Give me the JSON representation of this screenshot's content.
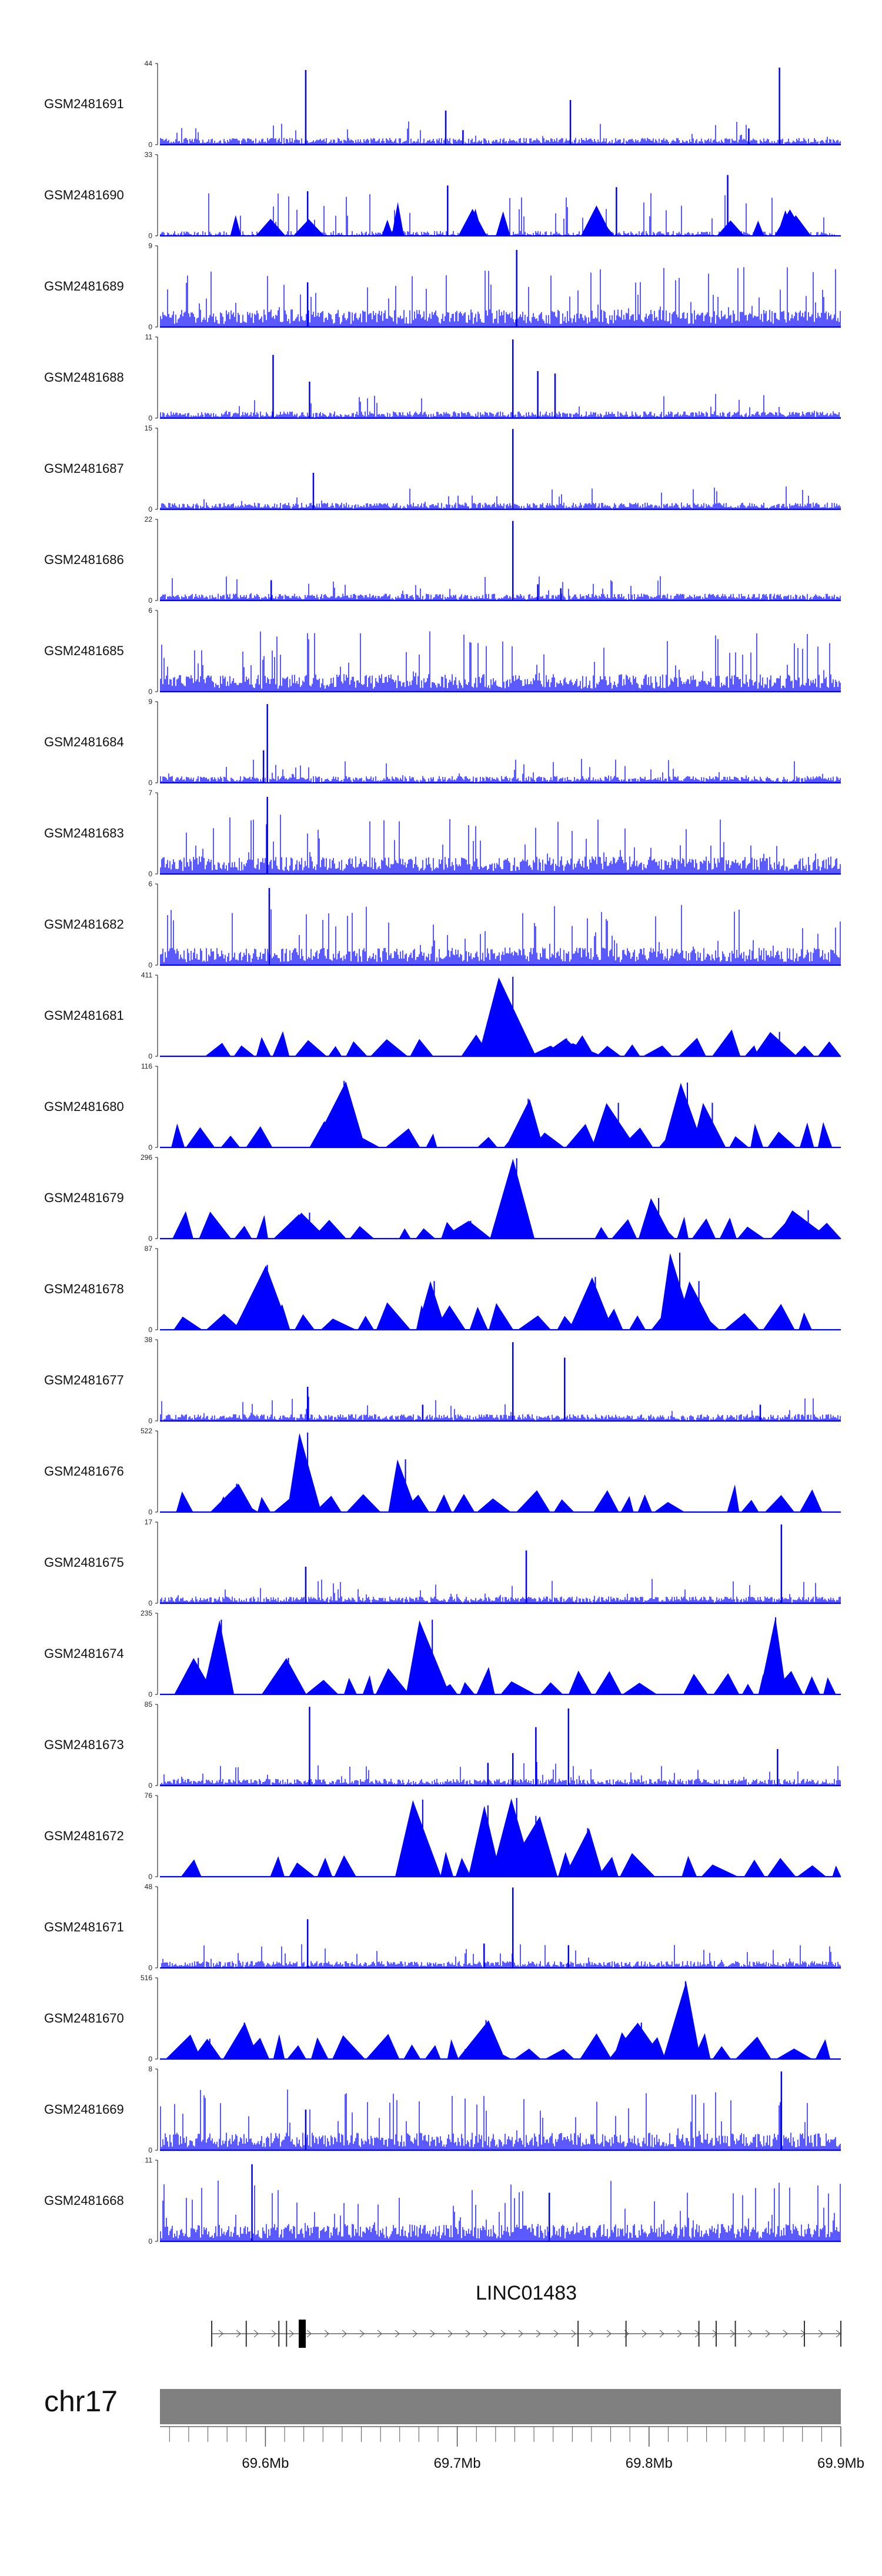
{
  "chart_data": {
    "type": "area",
    "title": "",
    "chromosome": "chr17",
    "xlim": [
      69.545,
      69.9
    ],
    "xunit": "Mb",
    "x_ticks": [
      {
        "value": 69.6,
        "label": "69.6Mb"
      },
      {
        "value": 69.7,
        "label": "69.7Mb"
      },
      {
        "value": 69.8,
        "label": "69.8Mb"
      },
      {
        "value": 69.9,
        "label": "69.9Mb"
      }
    ],
    "gene": {
      "name": "LINC01483",
      "start": 69.572,
      "end": 69.9,
      "strand": "+",
      "exons": [
        69.572,
        69.59,
        69.607,
        69.611,
        69.763,
        69.788,
        69.826,
        69.835,
        69.845,
        69.881,
        69.9
      ]
    },
    "series": [
      {
        "name": "GSM2481691",
        "ymax": 44,
        "style": "dense",
        "peaks": [
          [
            69.621,
            0.92
          ],
          [
            69.694,
            0.42
          ],
          [
            69.759,
            0.55
          ],
          [
            69.703,
            0.18
          ],
          [
            69.868,
            0.95
          ],
          [
            69.852,
            0.2
          ]
        ]
      },
      {
        "name": "GSM2481690",
        "ymax": 33,
        "style": "gappy",
        "peaks": [
          [
            69.695,
            0.62
          ],
          [
            69.783,
            0.6
          ],
          [
            69.841,
            0.75
          ],
          [
            69.622,
            0.55
          ]
        ]
      },
      {
        "name": "GSM2481689",
        "ymax": 9,
        "style": "noise",
        "peaks": [
          [
            69.731,
            0.95
          ],
          [
            69.622,
            0.55
          ]
        ]
      },
      {
        "name": "GSM2481688",
        "ymax": 11,
        "style": "dense",
        "peaks": [
          [
            69.729,
            0.97
          ],
          [
            69.604,
            0.78
          ],
          [
            69.751,
            0.55
          ],
          [
            69.623,
            0.45
          ],
          [
            69.742,
            0.58
          ]
        ]
      },
      {
        "name": "GSM2481687",
        "ymax": 15,
        "style": "dense",
        "peaks": [
          [
            69.729,
            0.99
          ],
          [
            69.625,
            0.45
          ]
        ]
      },
      {
        "name": "GSM2481686",
        "ymax": 22,
        "style": "dense",
        "peaks": [
          [
            69.729,
            0.98
          ],
          [
            69.603,
            0.25
          ],
          [
            69.742,
            0.2
          ],
          [
            69.754,
            0.15
          ]
        ]
      },
      {
        "name": "GSM2481685",
        "ymax": 6,
        "style": "noise",
        "peaks": []
      },
      {
        "name": "GSM2481684",
        "ymax": 9,
        "style": "dense",
        "peaks": [
          [
            69.601,
            0.97
          ],
          [
            69.599,
            0.4
          ]
        ]
      },
      {
        "name": "GSM2481683",
        "ymax": 7,
        "style": "noise",
        "peaks": [
          [
            69.601,
            0.95
          ]
        ]
      },
      {
        "name": "GSM2481682",
        "ymax": 6,
        "style": "noise",
        "peaks": [
          [
            69.602,
            0.95
          ]
        ]
      },
      {
        "name": "GSM2481681",
        "ymax": 411,
        "style": "triangles",
        "peaks": [
          [
            69.729,
            0.98
          ],
          [
            69.718,
            0.16
          ],
          [
            69.757,
            0.22
          ],
          [
            69.764,
            0.16
          ],
          [
            69.868,
            0.3
          ]
        ]
      },
      {
        "name": "GSM2481680",
        "ymax": 116,
        "style": "triangles",
        "peaks": [
          [
            69.641,
            0.82
          ],
          [
            69.737,
            0.6
          ],
          [
            69.784,
            0.55
          ],
          [
            69.82,
            0.8
          ],
          [
            69.833,
            0.55
          ]
        ]
      },
      {
        "name": "GSM2481679",
        "ymax": 296,
        "style": "triangles",
        "peaks": [
          [
            69.731,
            0.99
          ],
          [
            69.707,
            0.22
          ],
          [
            69.623,
            0.32
          ],
          [
            69.805,
            0.5
          ],
          [
            69.883,
            0.35
          ]
        ]
      },
      {
        "name": "GSM2481678",
        "ymax": 87,
        "style": "triangles",
        "peaks": [
          [
            69.816,
            0.95
          ],
          [
            69.826,
            0.6
          ],
          [
            69.772,
            0.65
          ],
          [
            69.688,
            0.6
          ],
          [
            69.601,
            0.8
          ]
        ]
      },
      {
        "name": "GSM2481677",
        "ymax": 38,
        "style": "dense",
        "peaks": [
          [
            69.729,
            0.97
          ],
          [
            69.756,
            0.78
          ],
          [
            69.622,
            0.42
          ],
          [
            69.682,
            0.2
          ],
          [
            69.858,
            0.2
          ]
        ]
      },
      {
        "name": "GSM2481676",
        "ymax": 522,
        "style": "triangles",
        "peaks": [
          [
            69.622,
            0.98
          ],
          [
            69.673,
            0.65
          ],
          [
            69.588,
            0.15
          ],
          [
            69.585,
            0.35
          ]
        ]
      },
      {
        "name": "GSM2481675",
        "ymax": 17,
        "style": "dense",
        "peaks": [
          [
            69.869,
            0.97
          ],
          [
            69.736,
            0.65
          ],
          [
            69.621,
            0.45
          ]
        ]
      },
      {
        "name": "GSM2481674",
        "ymax": 235,
        "style": "triangles",
        "peaks": [
          [
            69.687,
            0.92
          ],
          [
            69.577,
            0.92
          ],
          [
            69.866,
            0.95
          ],
          [
            69.612,
            0.45
          ],
          [
            69.565,
            0.45
          ]
        ]
      },
      {
        "name": "GSM2481673",
        "ymax": 85,
        "style": "dense",
        "peaks": [
          [
            69.623,
            0.97
          ],
          [
            69.758,
            0.95
          ],
          [
            69.741,
            0.72
          ],
          [
            69.729,
            0.4
          ],
          [
            69.716,
            0.28
          ],
          [
            69.867,
            0.45
          ]
        ]
      },
      {
        "name": "GSM2481672",
        "ymax": 76,
        "style": "triangles",
        "peaks": [
          [
            69.682,
            0.95
          ],
          [
            69.731,
            0.97
          ],
          [
            69.716,
            0.88
          ],
          [
            69.741,
            0.75
          ],
          [
            69.768,
            0.6
          ]
        ]
      },
      {
        "name": "GSM2481671",
        "ymax": 48,
        "style": "dense",
        "peaks": [
          [
            69.729,
            0.99
          ],
          [
            69.622,
            0.6
          ],
          [
            69.758,
            0.28
          ],
          [
            69.714,
            0.3
          ]
        ]
      },
      {
        "name": "GSM2481670",
        "ymax": 516,
        "style": "triangles",
        "peaks": [
          [
            69.819,
            0.96
          ],
          [
            69.796,
            0.45
          ],
          [
            69.715,
            0.48
          ],
          [
            69.589,
            0.45
          ],
          [
            69.571,
            0.25
          ]
        ]
      },
      {
        "name": "GSM2481669",
        "ymax": 8,
        "style": "noise",
        "peaks": [
          [
            69.869,
            0.97
          ],
          [
            69.621,
            0.5
          ]
        ]
      },
      {
        "name": "GSM2481668",
        "ymax": 11,
        "style": "noise",
        "peaks": [
          [
            69.593,
            0.95
          ],
          [
            69.748,
            0.6
          ]
        ]
      }
    ]
  }
}
